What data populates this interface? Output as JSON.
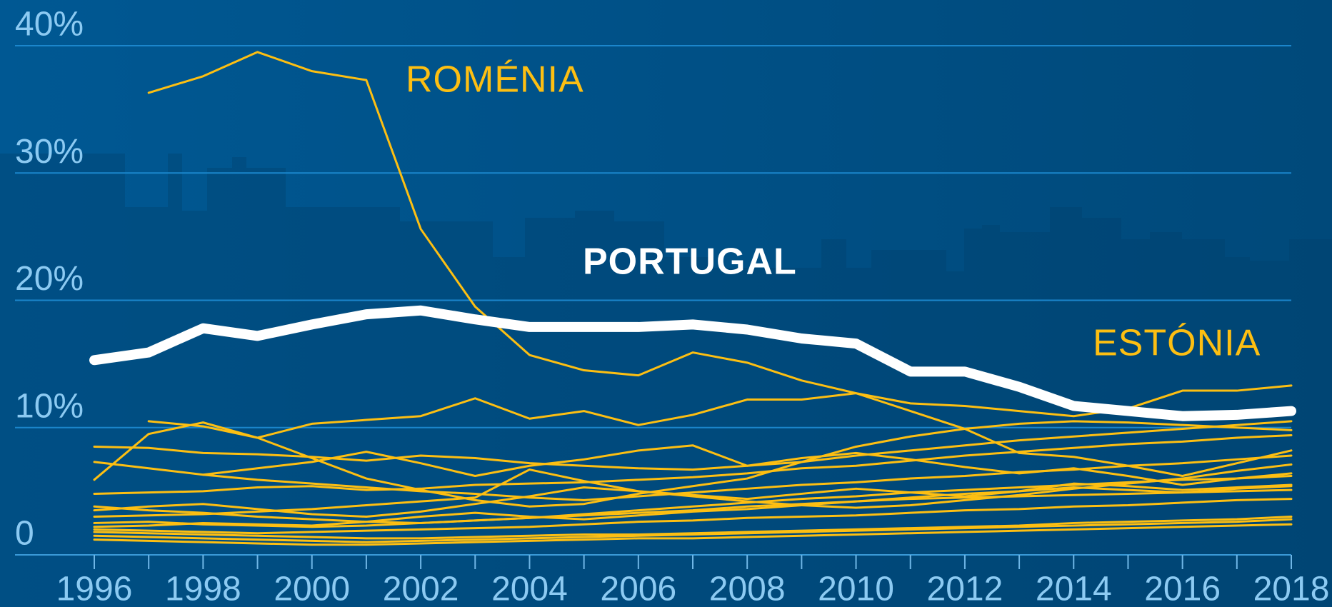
{
  "chart_data": {
    "type": "line",
    "x": [
      1996,
      1997,
      1998,
      1999,
      2000,
      2001,
      2002,
      2003,
      2004,
      2005,
      2006,
      2007,
      2008,
      2009,
      2010,
      2011,
      2012,
      2013,
      2014,
      2015,
      2016,
      2017,
      2018
    ],
    "xlim": [
      1996,
      2018
    ],
    "xticks": [
      1996,
      1998,
      2000,
      2002,
      2004,
      2006,
      2008,
      2010,
      2012,
      2014,
      2016,
      2018
    ],
    "ylim": [
      0,
      40
    ],
    "yticks": [
      0,
      {
        "value": 10,
        "label": "10%"
      },
      {
        "value": 20,
        "label": "20%"
      },
      {
        "value": 30,
        "label": "30%"
      },
      {
        "value": 40,
        "label": "40%"
      }
    ],
    "grid": true,
    "series": [
      {
        "color": "#fdbf12",
        "line_width": 3,
        "values": [
          8.5,
          8.4,
          8.0,
          7.9,
          7.7,
          7.4,
          7.8,
          7.6,
          7.2,
          7.0,
          6.8,
          6.7,
          7.0,
          7.3,
          7.8,
          8.2,
          8.6,
          9.0,
          9.3,
          9.6,
          9.9,
          10.2,
          10.5
        ]
      },
      {
        "color": "#fdbf12",
        "line_width": 3,
        "values": [
          7.3,
          6.8,
          6.3,
          5.9,
          5.6,
          5.3,
          5.0,
          4.8,
          4.5,
          4.3,
          4.6,
          4.9,
          5.2,
          5.5,
          5.7,
          6.0,
          6.2,
          6.5,
          6.7,
          7.0,
          7.2,
          7.5,
          7.8
        ]
      },
      {
        "color": "#fdbf12",
        "line_width": 3,
        "values": [
          null,
          10.5,
          10.1,
          9.2,
          7.6,
          6.0,
          5.1,
          4.3,
          3.8,
          4.0,
          4.8,
          5.4,
          6.0,
          7.3,
          8.5,
          9.3,
          9.9,
          10.3,
          10.5,
          10.4,
          10.2,
          10.0,
          9.8
        ]
      },
      {
        "color": "#fdbf12",
        "line_width": 3,
        "values": [
          4.8,
          4.9,
          5.0,
          5.3,
          5.4,
          5.1,
          5.2,
          5.5,
          5.6,
          5.7,
          5.9,
          6.1,
          6.4,
          6.8,
          7.0,
          7.4,
          7.8,
          8.1,
          8.4,
          8.7,
          8.9,
          9.2,
          9.4
        ]
      },
      {
        "color": "#fdbf12",
        "line_width": 3,
        "values": [
          3.8,
          3.5,
          3.3,
          3.0,
          2.8,
          2.6,
          2.5,
          2.7,
          2.9,
          3.2,
          3.5,
          3.8,
          4.1,
          4.4,
          4.6,
          4.9,
          5.1,
          5.3,
          5.5,
          5.7,
          5.9,
          6.0,
          6.2
        ]
      },
      {
        "color": "#fdbf12",
        "line_width": 3,
        "values": [
          3.0,
          3.1,
          3.2,
          3.4,
          3.6,
          3.9,
          4.2,
          4.5,
          6.7,
          5.8,
          5.0,
          4.6,
          4.2,
          3.9,
          3.7,
          3.9,
          4.3,
          4.7,
          5.2,
          5.6,
          6.0,
          6.6,
          7.1
        ]
      },
      {
        "color": "#fdbf12",
        "line_width": 3,
        "values": [
          2.5,
          2.6,
          2.4,
          2.3,
          2.2,
          2.3,
          2.5,
          2.7,
          2.9,
          3.1,
          3.3,
          3.5,
          3.8,
          4.0,
          4.2,
          4.4,
          4.5,
          4.6,
          4.7,
          4.8,
          4.9,
          5.0,
          5.1
        ]
      },
      {
        "color": "#fdbf12",
        "line_width": 3,
        "values": [
          2.0,
          1.9,
          1.8,
          1.7,
          1.8,
          1.9,
          2.0,
          2.1,
          2.2,
          2.4,
          2.6,
          2.7,
          2.9,
          3.0,
          3.1,
          3.3,
          3.5,
          3.6,
          3.8,
          3.9,
          4.1,
          4.3,
          4.4
        ]
      },
      {
        "color": "#fdbf12",
        "line_width": 3,
        "values": [
          1.5,
          1.4,
          1.3,
          1.2,
          1.1,
          1.0,
          1.1,
          1.2,
          1.3,
          1.4,
          1.5,
          1.6,
          1.7,
          1.8,
          1.9,
          2.0,
          2.1,
          2.2,
          2.3,
          2.4,
          2.5,
          2.6,
          2.8
        ]
      },
      {
        "color": "#fdbf12",
        "line_width": 3,
        "values": [
          1.2,
          1.1,
          1.0,
          0.9,
          0.8,
          0.8,
          0.9,
          1.0,
          1.1,
          1.2,
          1.3,
          1.3,
          1.4,
          1.5,
          1.6,
          1.7,
          1.8,
          1.9,
          2.0,
          2.1,
          2.2,
          2.3,
          2.4
        ]
      },
      {
        "color": "#fdbf12",
        "line_width": 3,
        "values": [
          3.5,
          3.8,
          4.0,
          3.6,
          3.2,
          3.0,
          3.4,
          4.0,
          4.6,
          5.3,
          5.0,
          4.7,
          4.4,
          4.8,
          5.2,
          4.9,
          4.6,
          5.0,
          5.6,
          5.4,
          5.1,
          5.3,
          5.5
        ]
      },
      {
        "color": "#fdbf12",
        "line_width": 3,
        "values": [
          null,
          null,
          6.3,
          6.8,
          7.3,
          8.1,
          7.2,
          6.2,
          7.0,
          7.5,
          8.2,
          8.6,
          7.0,
          7.6,
          8.0,
          7.5,
          6.9,
          6.4,
          6.8,
          6.2,
          5.5,
          6.0,
          6.4
        ]
      },
      {
        "color": "#fdbf12",
        "line_width": 3,
        "values": [
          2.2,
          2.3,
          2.5,
          2.4,
          2.3,
          2.6,
          3.0,
          3.3,
          3.0,
          2.8,
          3.1,
          3.4,
          3.6,
          3.9,
          4.2,
          4.5,
          4.8,
          5.0,
          5.3,
          5.1,
          4.9,
          5.2,
          5.4
        ]
      },
      {
        "color": "#fdbf12",
        "line_width": 3,
        "values": [
          1.8,
          1.7,
          1.6,
          1.5,
          1.4,
          1.3,
          1.3,
          1.4,
          1.5,
          1.6,
          1.6,
          1.7,
          1.8,
          1.9,
          2.0,
          2.1,
          2.2,
          2.3,
          2.5,
          2.6,
          2.7,
          2.8,
          3.0
        ]
      },
      {
        "name": "ESTÓNIA",
        "color": "#fdbf12",
        "line_width": 3,
        "values": [
          5.9,
          9.5,
          10.4,
          9.2,
          10.3,
          10.6,
          10.9,
          12.3,
          10.7,
          11.3,
          10.2,
          11.0,
          12.2,
          12.2,
          12.7,
          11.9,
          11.7,
          11.3,
          10.9,
          11.5,
          12.9,
          12.9,
          13.3
        ]
      },
      {
        "name": "ROMÉNIA",
        "color": "#fdbf12",
        "line_width": 3,
        "values": [
          null,
          36.3,
          37.6,
          39.5,
          38.0,
          37.3,
          25.6,
          19.5,
          15.7,
          14.5,
          14.1,
          15.9,
          15.1,
          13.7,
          12.7,
          11.3,
          9.9,
          8.0,
          7.7,
          7.0,
          6.2,
          7.2,
          8.2
        ]
      },
      {
        "name": "PORTUGAL",
        "color": "#ffffff",
        "line_width": 14,
        "values": [
          15.3,
          15.9,
          17.8,
          17.2,
          18.1,
          18.9,
          19.2,
          18.5,
          17.9,
          17.9,
          17.9,
          18.1,
          17.7,
          17.0,
          16.6,
          14.4,
          14.4,
          13.2,
          11.7,
          11.3,
          10.9,
          11.0,
          11.3
        ]
      }
    ]
  }
}
